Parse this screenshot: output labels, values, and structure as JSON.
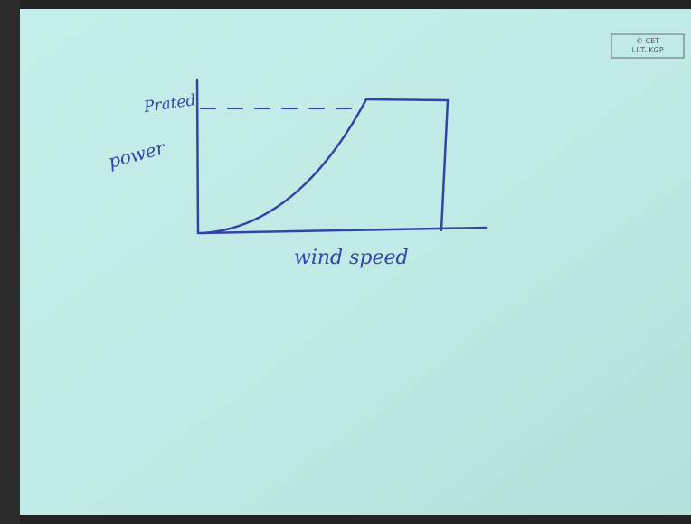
{
  "labels": {
    "rated": "Prated",
    "y_axis": "power",
    "x_axis": "wind speed"
  },
  "watermark": [
    "© CET",
    "I.I.T. KGP"
  ]
}
